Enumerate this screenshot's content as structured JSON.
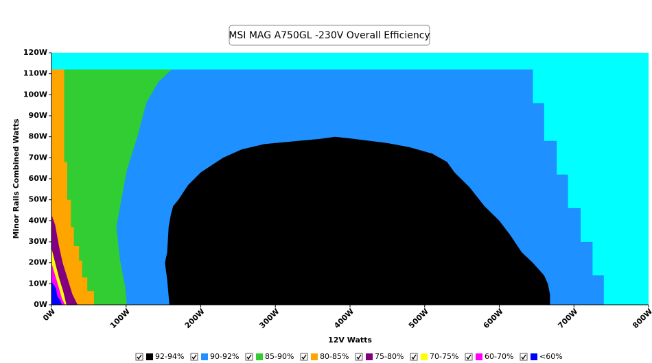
{
  "chart_data": {
    "type": "region",
    "title": "MSI MAG A750GL -230V Overall Efficiency",
    "x_label": "12V Watts",
    "y_label": "Minor Rails Combined Watts",
    "plot_background": "#00ffff",
    "grid": true,
    "legend": "bottom",
    "xlim": [
      0,
      800
    ],
    "ylim": [
      0,
      120
    ],
    "xticks": [
      {
        "value": 0,
        "label": "0W"
      },
      {
        "value": 100,
        "label": "100W"
      },
      {
        "value": 200,
        "label": "200W"
      },
      {
        "value": 300,
        "label": "300W"
      },
      {
        "value": 400,
        "label": "400W"
      },
      {
        "value": 500,
        "label": "500W"
      },
      {
        "value": 600,
        "label": "600W"
      },
      {
        "value": 700,
        "label": "700W"
      },
      {
        "value": 800,
        "label": "800W"
      }
    ],
    "yticks": [
      {
        "value": 0,
        "label": "0W"
      },
      {
        "value": 10,
        "label": "10W"
      },
      {
        "value": 20,
        "label": "20W"
      },
      {
        "value": 30,
        "label": "30W"
      },
      {
        "value": 40,
        "label": "40W"
      },
      {
        "value": 50,
        "label": "50W"
      },
      {
        "value": 60,
        "label": "60W"
      },
      {
        "value": 70,
        "label": "70W"
      },
      {
        "value": 80,
        "label": "80W"
      },
      {
        "value": 90,
        "label": "90W"
      },
      {
        "value": 100,
        "label": "100W"
      },
      {
        "value": 110,
        "label": "110W"
      },
      {
        "value": 120,
        "label": "120W"
      }
    ],
    "series": [
      {
        "name": "92-94%",
        "color": "#000000",
        "x": [
          158,
          155,
          152,
          155,
          157,
          160,
          163,
          170,
          183,
          200,
          230,
          255,
          285,
          330,
          360,
          380,
          405,
          450,
          480,
          510,
          530,
          540,
          560,
          580,
          600,
          615,
          630,
          645,
          660,
          665,
          668,
          668
        ],
        "values": [
          0,
          12,
          20,
          25,
          37,
          43,
          47,
          50,
          57,
          63,
          70,
          74,
          76.5,
          78,
          79,
          80,
          79,
          77,
          75,
          72,
          68,
          63,
          56,
          47,
          40,
          33,
          25,
          20,
          14,
          10,
          5,
          0
        ]
      },
      {
        "name": "90-92%",
        "color": "#1e90ff",
        "x": [
          0,
          0,
          645,
          645,
          660,
          660,
          677,
          677,
          692,
          692,
          709,
          709,
          725,
          725,
          740,
          740
        ],
        "values": [
          0,
          112,
          112,
          96,
          96,
          78,
          78,
          62,
          62,
          46,
          46,
          30,
          30,
          14,
          14,
          0
        ]
      },
      {
        "name": "85-90%",
        "color": "#32cd32",
        "x": [
          0,
          0,
          161,
          143,
          127,
          115,
          101,
          92,
          87,
          92,
          99,
          101
        ],
        "values": [
          0,
          112,
          112,
          106,
          96,
          80,
          64,
          47,
          37,
          21,
          8,
          0
        ]
      },
      {
        "name": "80-85%",
        "color": "#ffa500",
        "x": [
          0,
          0,
          17,
          17,
          21,
          21,
          26,
          26,
          30,
          30,
          37,
          37,
          41,
          41,
          48,
          48,
          57,
          57
        ],
        "values": [
          0,
          112,
          112,
          68,
          68,
          50,
          50,
          37,
          37,
          28,
          28,
          21,
          21,
          13,
          13,
          6.5,
          6.5,
          0
        ]
      },
      {
        "name": "75-80%",
        "color": "#800080",
        "x": [
          0,
          0,
          5,
          10,
          15,
          22,
          28,
          35
        ],
        "values": [
          0,
          43,
          38,
          28,
          20,
          12,
          5,
          0
        ]
      },
      {
        "name": "70-75%",
        "color": "#ffff00",
        "x": [
          0,
          0,
          5,
          10,
          16,
          20
        ],
        "values": [
          0,
          27,
          20,
          13,
          6,
          0
        ]
      },
      {
        "name": "60-70%",
        "color": "#ff00ff",
        "x": [
          0,
          0,
          5,
          10,
          14,
          18
        ],
        "values": [
          0,
          20,
          14,
          8,
          3,
          0
        ]
      },
      {
        "name": "<60%",
        "color": "#0000ff",
        "x": [
          0,
          0,
          6,
          8,
          12,
          14
        ],
        "values": [
          0,
          11,
          8,
          4,
          2,
          0
        ]
      }
    ]
  }
}
